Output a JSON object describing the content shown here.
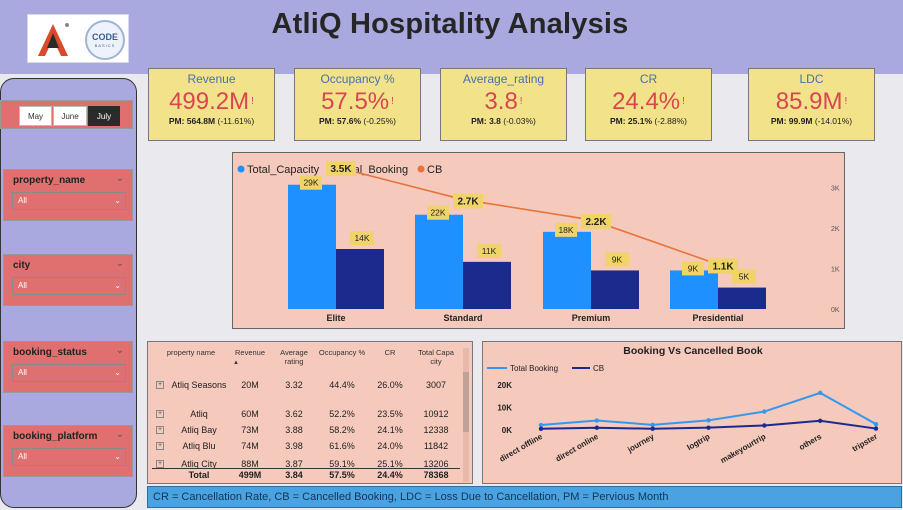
{
  "header": {
    "title": "AtliQ Hospitality Analysis",
    "logo_text": "CODE",
    "logo_subtext": "BASICS"
  },
  "months": [
    {
      "label": "May",
      "active": false
    },
    {
      "label": "June",
      "active": false
    },
    {
      "label": "July",
      "active": true
    }
  ],
  "filters": [
    {
      "label": "property_name",
      "value": "All"
    },
    {
      "label": "city",
      "value": "All"
    },
    {
      "label": "booking_status",
      "value": "All"
    },
    {
      "label": "booking_platform",
      "value": "All"
    }
  ],
  "kpis": [
    {
      "label": "Revenue",
      "value": "499.2M",
      "pm": "PM: 564.8M",
      "change": "(-11.61%)"
    },
    {
      "label": "Occupancy %",
      "value": "57.5%",
      "pm": "PM: 57.6%",
      "change": "(-0.25%)"
    },
    {
      "label": "Average_rating",
      "value": "3.8",
      "pm": "PM: 3.8",
      "change": "(-0.03%)"
    },
    {
      "label": "CR",
      "value": "24.4%",
      "pm": "PM: 25.1%",
      "change": "(-2.88%)"
    },
    {
      "label": "LDC",
      "value": "85.9M",
      "pm": "PM: 99.9M",
      "change": "(-14.01%)"
    }
  ],
  "kpi_indicator": "!",
  "colors": {
    "total_capacity": "#1e90ff",
    "total_booking": "#1b2a8c",
    "cb": "#e8743b",
    "line_total_booking": "#3399ee",
    "line_cb": "#1b2a8c",
    "data_label_bg": "#f0d46a"
  },
  "chart_data": [
    {
      "type": "bar",
      "legend_placement": "top-left",
      "categories": [
        "Elite",
        "Standard",
        "Premium",
        "Presidential"
      ],
      "series": [
        {
          "name": "Total_Capacity",
          "kind": "bar",
          "values": [
            29000,
            22000,
            18000,
            9000
          ],
          "labels": [
            "29K",
            "22K",
            "18K",
            "9K"
          ]
        },
        {
          "name": "Total_Booking",
          "kind": "bar",
          "values": [
            14000,
            11000,
            9000,
            5000
          ],
          "labels": [
            "14K",
            "11K",
            "9K",
            "5K"
          ]
        },
        {
          "name": "CB",
          "kind": "line",
          "axis": "secondary",
          "values": [
            3500,
            2700,
            2200,
            1100
          ],
          "labels": [
            "3.5K",
            "2.7K",
            "2.2K",
            "1.1K"
          ]
        }
      ],
      "secondary_axis_ticks": [
        "0K",
        "1K",
        "2K",
        "3K"
      ],
      "secondary_ylim": [
        0,
        3700
      ],
      "primary_ylim": [
        0,
        35000
      ]
    },
    {
      "type": "line",
      "title": "Booking Vs Cancelled Book",
      "legend_placement": "top-left",
      "categories": [
        "direct offline",
        "direct online",
        "journey",
        "logtrip",
        "makeyourtrip",
        "others",
        "tripster"
      ],
      "series": [
        {
          "name": "Total Booking",
          "values": [
            2200,
            4200,
            2300,
            4300,
            8200,
            16500,
            2600
          ]
        },
        {
          "name": "CB",
          "values": [
            550,
            1000,
            560,
            1050,
            2000,
            4100,
            640
          ]
        }
      ],
      "y_ticks": [
        "0K",
        "10K",
        "20K"
      ],
      "ylim": [
        0,
        20000
      ]
    }
  ],
  "table": {
    "headers": [
      "property name",
      "Revenue",
      "Average rating",
      "Occupancy %",
      "CR",
      "Total Capa city"
    ],
    "sort_indicator": "▲",
    "rows": [
      {
        "name": "Atliq Seasons",
        "revenue": "20M",
        "rating": "3.32",
        "occupancy": "44.4%",
        "cr": "26.0%",
        "capacity": "3007"
      },
      {
        "name": "Atliq",
        "revenue": "60M",
        "rating": "3.62",
        "occupancy": "52.2%",
        "cr": "23.5%",
        "capacity": "10912"
      },
      {
        "name": "Atliq Bay",
        "revenue": "73M",
        "rating": "3.88",
        "occupancy": "58.2%",
        "cr": "24.1%",
        "capacity": "12338"
      },
      {
        "name": "Atliq Blu",
        "revenue": "74M",
        "rating": "3.98",
        "occupancy": "61.6%",
        "cr": "24.0%",
        "capacity": "11842"
      },
      {
        "name": "Atliq City",
        "revenue": "88M",
        "rating": "3.87",
        "occupancy": "59.1%",
        "cr": "25.1%",
        "capacity": "13206"
      }
    ],
    "total": {
      "name": "Total",
      "revenue": "499M",
      "rating": "3.84",
      "occupancy": "57.5%",
      "cr": "24.4%",
      "capacity": "78368"
    }
  },
  "footer": {
    "text": "CR = Cancellation Rate, CB = Cancelled Booking, LDC = Loss Due to Cancellation, PM = Pervious Month"
  }
}
